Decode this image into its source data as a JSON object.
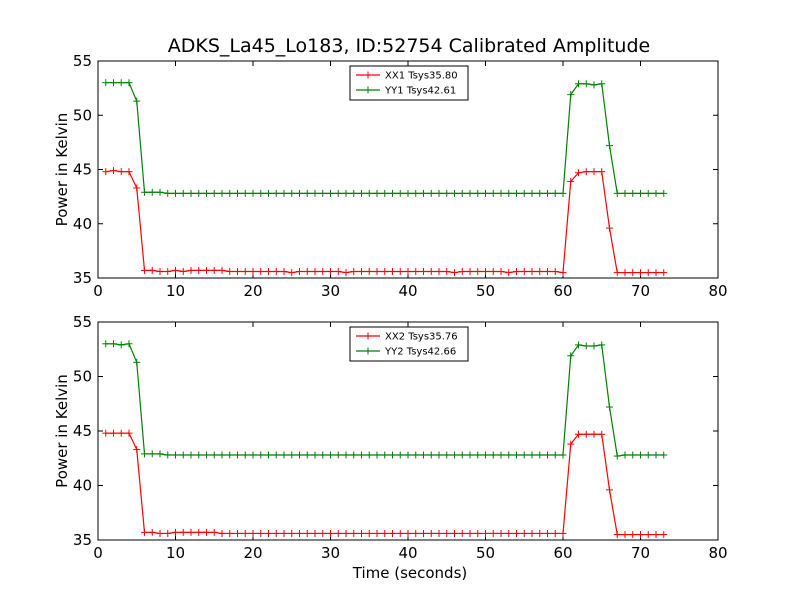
{
  "chart_data": [
    {
      "type": "line",
      "title": "ADKS_La45_Lo183, ID:52754 Calibrated Amplitude",
      "xlabel": "",
      "ylabel": "Power in Kelvin",
      "xlim": [
        0,
        80
      ],
      "ylim": [
        35,
        55
      ],
      "xticks": [
        0,
        10,
        20,
        30,
        40,
        50,
        60,
        70,
        80
      ],
      "yticks": [
        35,
        40,
        45,
        50,
        55
      ],
      "grid": false,
      "legend_position": "top-center",
      "series": [
        {
          "name": "XX1 Tsys35.80",
          "color": "#ff0000",
          "x": [
            1,
            2,
            3,
            4,
            5,
            6,
            7,
            8,
            9,
            10,
            11,
            12,
            13,
            14,
            15,
            16,
            17,
            18,
            19,
            20,
            21,
            22,
            23,
            24,
            25,
            26,
            27,
            28,
            29,
            30,
            31,
            32,
            33,
            34,
            35,
            36,
            37,
            38,
            39,
            40,
            41,
            42,
            43,
            44,
            45,
            46,
            47,
            48,
            49,
            50,
            51,
            52,
            53,
            54,
            55,
            56,
            57,
            58,
            59,
            60,
            61,
            62,
            63,
            64,
            65,
            66,
            67,
            68,
            69,
            70,
            71,
            72,
            73
          ],
          "values": [
            44.8,
            44.9,
            44.8,
            44.8,
            43.3,
            35.7,
            35.7,
            35.6,
            35.6,
            35.7,
            35.6,
            35.7,
            35.7,
            35.7,
            35.7,
            35.7,
            35.6,
            35.6,
            35.6,
            35.6,
            35.6,
            35.6,
            35.6,
            35.6,
            35.5,
            35.6,
            35.6,
            35.6,
            35.6,
            35.6,
            35.6,
            35.5,
            35.6,
            35.6,
            35.6,
            35.6,
            35.6,
            35.6,
            35.6,
            35.6,
            35.6,
            35.6,
            35.6,
            35.6,
            35.6,
            35.5,
            35.6,
            35.6,
            35.6,
            35.6,
            35.6,
            35.6,
            35.5,
            35.6,
            35.6,
            35.6,
            35.6,
            35.6,
            35.6,
            35.5,
            43.9,
            44.7,
            44.8,
            44.8,
            44.8,
            39.6,
            35.5,
            35.5,
            35.5,
            35.5,
            35.5,
            35.5,
            35.5
          ]
        },
        {
          "name": "YY1 Tsys42.61",
          "color": "#008000",
          "x": [
            1,
            2,
            3,
            4,
            5,
            6,
            7,
            8,
            9,
            10,
            11,
            12,
            13,
            14,
            15,
            16,
            17,
            18,
            19,
            20,
            21,
            22,
            23,
            24,
            25,
            26,
            27,
            28,
            29,
            30,
            31,
            32,
            33,
            34,
            35,
            36,
            37,
            38,
            39,
            40,
            41,
            42,
            43,
            44,
            45,
            46,
            47,
            48,
            49,
            50,
            51,
            52,
            53,
            54,
            55,
            56,
            57,
            58,
            59,
            60,
            61,
            62,
            63,
            64,
            65,
            66,
            67,
            68,
            69,
            70,
            71,
            72,
            73
          ],
          "values": [
            53.0,
            53.0,
            53.0,
            53.0,
            51.3,
            42.9,
            42.9,
            42.9,
            42.8,
            42.8,
            42.8,
            42.8,
            42.8,
            42.8,
            42.8,
            42.8,
            42.8,
            42.8,
            42.8,
            42.8,
            42.8,
            42.8,
            42.8,
            42.8,
            42.8,
            42.8,
            42.8,
            42.8,
            42.8,
            42.8,
            42.8,
            42.8,
            42.8,
            42.8,
            42.8,
            42.8,
            42.8,
            42.8,
            42.8,
            42.8,
            42.8,
            42.8,
            42.8,
            42.8,
            42.8,
            42.8,
            42.8,
            42.8,
            42.8,
            42.8,
            42.8,
            42.8,
            42.8,
            42.8,
            42.8,
            42.8,
            42.8,
            42.8,
            42.8,
            42.8,
            51.9,
            52.9,
            52.9,
            52.8,
            52.9,
            47.2,
            42.8,
            42.8,
            42.8,
            42.8,
            42.8,
            42.8,
            42.8
          ]
        }
      ]
    },
    {
      "type": "line",
      "title": "",
      "xlabel": "Time (seconds)",
      "ylabel": "Power in Kelvin",
      "xlim": [
        0,
        80
      ],
      "ylim": [
        35,
        55
      ],
      "xticks": [
        0,
        10,
        20,
        30,
        40,
        50,
        60,
        70,
        80
      ],
      "yticks": [
        35,
        40,
        45,
        50,
        55
      ],
      "grid": false,
      "legend_position": "top-center",
      "series": [
        {
          "name": "XX2 Tsys35.76",
          "color": "#ff0000",
          "x": [
            1,
            2,
            3,
            4,
            5,
            6,
            7,
            8,
            9,
            10,
            11,
            12,
            13,
            14,
            15,
            16,
            17,
            18,
            19,
            20,
            21,
            22,
            23,
            24,
            25,
            26,
            27,
            28,
            29,
            30,
            31,
            32,
            33,
            34,
            35,
            36,
            37,
            38,
            39,
            40,
            41,
            42,
            43,
            44,
            45,
            46,
            47,
            48,
            49,
            50,
            51,
            52,
            53,
            54,
            55,
            56,
            57,
            58,
            59,
            60,
            61,
            62,
            63,
            64,
            65,
            66,
            67,
            68,
            69,
            70,
            71,
            72,
            73
          ],
          "values": [
            44.8,
            44.8,
            44.8,
            44.8,
            43.3,
            35.7,
            35.7,
            35.6,
            35.6,
            35.7,
            35.7,
            35.7,
            35.7,
            35.7,
            35.7,
            35.6,
            35.6,
            35.6,
            35.6,
            35.6,
            35.6,
            35.6,
            35.6,
            35.6,
            35.6,
            35.6,
            35.6,
            35.6,
            35.6,
            35.6,
            35.6,
            35.6,
            35.6,
            35.6,
            35.6,
            35.6,
            35.6,
            35.6,
            35.6,
            35.6,
            35.6,
            35.6,
            35.6,
            35.6,
            35.6,
            35.6,
            35.6,
            35.6,
            35.6,
            35.6,
            35.6,
            35.6,
            35.6,
            35.6,
            35.6,
            35.6,
            35.6,
            35.6,
            35.6,
            35.6,
            43.8,
            44.7,
            44.7,
            44.7,
            44.7,
            39.6,
            35.5,
            35.5,
            35.5,
            35.5,
            35.5,
            35.5,
            35.5
          ]
        },
        {
          "name": "YY2 Tsys42.66",
          "color": "#008000",
          "x": [
            1,
            2,
            3,
            4,
            5,
            6,
            7,
            8,
            9,
            10,
            11,
            12,
            13,
            14,
            15,
            16,
            17,
            18,
            19,
            20,
            21,
            22,
            23,
            24,
            25,
            26,
            27,
            28,
            29,
            30,
            31,
            32,
            33,
            34,
            35,
            36,
            37,
            38,
            39,
            40,
            41,
            42,
            43,
            44,
            45,
            46,
            47,
            48,
            49,
            50,
            51,
            52,
            53,
            54,
            55,
            56,
            57,
            58,
            59,
            60,
            61,
            62,
            63,
            64,
            65,
            66,
            67,
            68,
            69,
            70,
            71,
            72,
            73
          ],
          "values": [
            53.0,
            53.0,
            52.9,
            53.0,
            51.3,
            42.9,
            42.9,
            42.9,
            42.8,
            42.8,
            42.8,
            42.8,
            42.8,
            42.8,
            42.8,
            42.8,
            42.8,
            42.8,
            42.8,
            42.8,
            42.8,
            42.8,
            42.8,
            42.8,
            42.8,
            42.8,
            42.8,
            42.8,
            42.8,
            42.8,
            42.8,
            42.8,
            42.8,
            42.8,
            42.8,
            42.8,
            42.8,
            42.8,
            42.8,
            42.8,
            42.8,
            42.8,
            42.8,
            42.8,
            42.8,
            42.8,
            42.8,
            42.8,
            42.8,
            42.8,
            42.8,
            42.8,
            42.8,
            42.8,
            42.8,
            42.8,
            42.8,
            42.8,
            42.8,
            42.8,
            51.9,
            52.9,
            52.8,
            52.8,
            52.9,
            47.2,
            42.7,
            42.8,
            42.8,
            42.8,
            42.8,
            42.8,
            42.8
          ]
        }
      ]
    }
  ]
}
